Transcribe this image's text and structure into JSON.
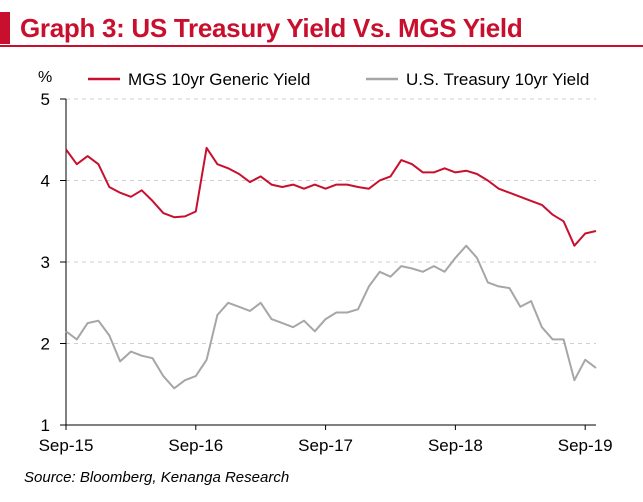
{
  "header": {
    "title": "Graph 3: US Treasury Yield Vs. MGS Yield"
  },
  "source_note": "Source:  Bloomberg, Kenanga Research",
  "colors": {
    "accent": "#c8102e",
    "mgs": "#c8102e",
    "ust": "#a6a6a6",
    "grid": "#cfcfcf"
  },
  "chart_data": {
    "type": "line",
    "title": "Graph 3: US Treasury Yield Vs. MGS Yield",
    "ylabel": "%",
    "ylim": [
      1,
      5
    ],
    "yticks": [
      1,
      2,
      3,
      4,
      5
    ],
    "xlim": [
      "2015-09",
      "2019-10"
    ],
    "xticks": [
      {
        "label": "Sep-15",
        "t": "2015-09"
      },
      {
        "label": "Sep-16",
        "t": "2016-09"
      },
      {
        "label": "Sep-17",
        "t": "2017-09"
      },
      {
        "label": "Sep-18",
        "t": "2018-09"
      },
      {
        "label": "Sep-19",
        "t": "2019-09"
      }
    ],
    "legend": "top",
    "grid": "horizontal dashed",
    "series": [
      {
        "name": "MGS 10yr Generic Yield",
        "color": "#c8102e",
        "points": [
          [
            "2015-09",
            4.38
          ],
          [
            "2015-10",
            4.2
          ],
          [
            "2015-11",
            4.3
          ],
          [
            "2015-12",
            4.2
          ],
          [
            "2016-01",
            3.92
          ],
          [
            "2016-02",
            3.85
          ],
          [
            "2016-03",
            3.8
          ],
          [
            "2016-04",
            3.88
          ],
          [
            "2016-05",
            3.75
          ],
          [
            "2016-06",
            3.6
          ],
          [
            "2016-07",
            3.55
          ],
          [
            "2016-08",
            3.56
          ],
          [
            "2016-09",
            3.62
          ],
          [
            "2016-10",
            4.4
          ],
          [
            "2016-11",
            4.2
          ],
          [
            "2016-12",
            4.15
          ],
          [
            "2017-01",
            4.08
          ],
          [
            "2017-02",
            3.98
          ],
          [
            "2017-03",
            4.05
          ],
          [
            "2017-04",
            3.95
          ],
          [
            "2017-05",
            3.92
          ],
          [
            "2017-06",
            3.95
          ],
          [
            "2017-07",
            3.9
          ],
          [
            "2017-08",
            3.95
          ],
          [
            "2017-09",
            3.9
          ],
          [
            "2017-10",
            3.95
          ],
          [
            "2017-11",
            3.95
          ],
          [
            "2017-12",
            3.92
          ],
          [
            "2018-01",
            3.9
          ],
          [
            "2018-02",
            4.0
          ],
          [
            "2018-03",
            4.05
          ],
          [
            "2018-04",
            4.25
          ],
          [
            "2018-05",
            4.2
          ],
          [
            "2018-06",
            4.1
          ],
          [
            "2018-07",
            4.1
          ],
          [
            "2018-08",
            4.15
          ],
          [
            "2018-09",
            4.1
          ],
          [
            "2018-10",
            4.12
          ],
          [
            "2018-11",
            4.08
          ],
          [
            "2018-12",
            4.0
          ],
          [
            "2019-01",
            3.9
          ],
          [
            "2019-02",
            3.85
          ],
          [
            "2019-03",
            3.8
          ],
          [
            "2019-04",
            3.75
          ],
          [
            "2019-05",
            3.7
          ],
          [
            "2019-06",
            3.58
          ],
          [
            "2019-07",
            3.5
          ],
          [
            "2019-08",
            3.2
          ],
          [
            "2019-09",
            3.35
          ],
          [
            "2019-10",
            3.38
          ]
        ]
      },
      {
        "name": "U.S. Treasury 10yr Yield",
        "color": "#a6a6a6",
        "points": [
          [
            "2015-09",
            2.15
          ],
          [
            "2015-10",
            2.05
          ],
          [
            "2015-11",
            2.25
          ],
          [
            "2015-12",
            2.28
          ],
          [
            "2016-01",
            2.1
          ],
          [
            "2016-02",
            1.78
          ],
          [
            "2016-03",
            1.9
          ],
          [
            "2016-04",
            1.85
          ],
          [
            "2016-05",
            1.82
          ],
          [
            "2016-06",
            1.6
          ],
          [
            "2016-07",
            1.45
          ],
          [
            "2016-08",
            1.55
          ],
          [
            "2016-09",
            1.6
          ],
          [
            "2016-10",
            1.8
          ],
          [
            "2016-11",
            2.35
          ],
          [
            "2016-12",
            2.5
          ],
          [
            "2017-01",
            2.45
          ],
          [
            "2017-02",
            2.4
          ],
          [
            "2017-03",
            2.5
          ],
          [
            "2017-04",
            2.3
          ],
          [
            "2017-05",
            2.25
          ],
          [
            "2017-06",
            2.2
          ],
          [
            "2017-07",
            2.28
          ],
          [
            "2017-08",
            2.15
          ],
          [
            "2017-09",
            2.3
          ],
          [
            "2017-10",
            2.38
          ],
          [
            "2017-11",
            2.38
          ],
          [
            "2017-12",
            2.42
          ],
          [
            "2018-01",
            2.7
          ],
          [
            "2018-02",
            2.88
          ],
          [
            "2018-03",
            2.82
          ],
          [
            "2018-04",
            2.95
          ],
          [
            "2018-05",
            2.92
          ],
          [
            "2018-06",
            2.88
          ],
          [
            "2018-07",
            2.95
          ],
          [
            "2018-08",
            2.88
          ],
          [
            "2018-09",
            3.05
          ],
          [
            "2018-10",
            3.2
          ],
          [
            "2018-11",
            3.05
          ],
          [
            "2018-12",
            2.75
          ],
          [
            "2019-01",
            2.7
          ],
          [
            "2019-02",
            2.68
          ],
          [
            "2019-03",
            2.45
          ],
          [
            "2019-04",
            2.52
          ],
          [
            "2019-05",
            2.2
          ],
          [
            "2019-06",
            2.05
          ],
          [
            "2019-07",
            2.05
          ],
          [
            "2019-08",
            1.55
          ],
          [
            "2019-09",
            1.8
          ],
          [
            "2019-10",
            1.7
          ]
        ]
      }
    ]
  }
}
